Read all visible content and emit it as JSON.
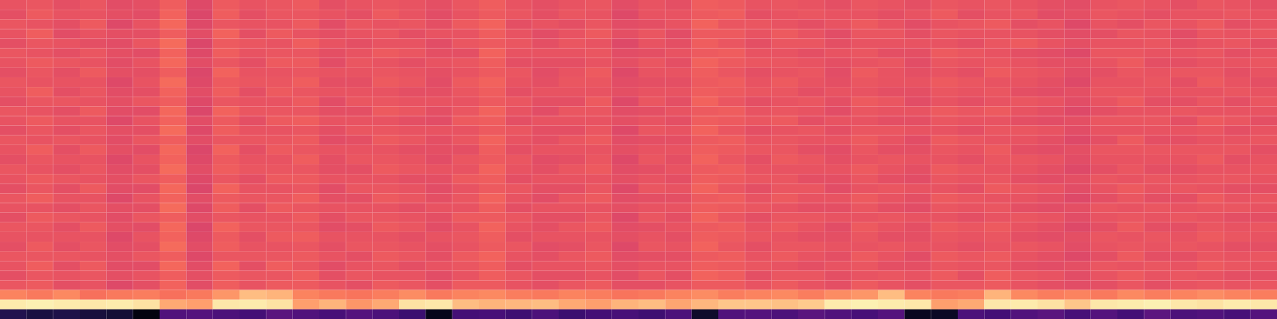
{
  "chart_data": {
    "type": "heatmap",
    "tick_labels": false,
    "color": "magma",
    "zlim": [
      0,
      100
    ],
    "cells": [
      [
        63,
        64,
        62,
        64,
        61,
        62,
        66,
        60,
        65,
        63,
        64,
        65,
        62,
        63,
        64,
        63,
        62,
        64,
        66,
        63,
        62,
        63,
        64,
        61,
        63,
        62,
        66,
        65,
        63,
        64,
        63,
        62,
        64,
        63,
        62,
        64,
        63,
        64,
        63,
        62,
        61,
        63,
        64,
        63,
        62,
        64,
        63,
        62
      ],
      [
        62,
        65,
        63,
        63,
        62,
        61,
        67,
        59,
        66,
        62,
        64,
        64,
        63,
        62,
        65,
        63,
        61,
        63,
        65,
        64,
        62,
        64,
        63,
        60,
        63,
        63,
        65,
        66,
        62,
        63,
        64,
        63,
        63,
        62,
        63,
        65,
        62,
        63,
        64,
        61,
        62,
        64,
        63,
        62,
        63,
        63,
        64,
        63
      ],
      [
        64,
        63,
        62,
        65,
        60,
        63,
        68,
        60,
        64,
        63,
        63,
        65,
        61,
        64,
        63,
        64,
        62,
        65,
        67,
        62,
        63,
        62,
        64,
        61,
        62,
        63,
        67,
        64,
        64,
        63,
        62,
        63,
        65,
        63,
        61,
        63,
        64,
        65,
        62,
        63,
        60,
        63,
        62,
        64,
        63,
        65,
        62,
        63
      ],
      [
        63,
        66,
        61,
        63,
        62,
        62,
        66,
        61,
        67,
        62,
        65,
        63,
        62,
        63,
        64,
        62,
        63,
        63,
        66,
        63,
        61,
        63,
        65,
        62,
        64,
        61,
        65,
        65,
        63,
        65,
        63,
        61,
        64,
        64,
        62,
        64,
        63,
        63,
        63,
        62,
        61,
        62,
        64,
        63,
        61,
        64,
        63,
        64
      ],
      [
        62,
        64,
        63,
        62,
        61,
        64,
        69,
        59,
        65,
        64,
        63,
        66,
        63,
        62,
        63,
        63,
        61,
        64,
        65,
        64,
        62,
        64,
        63,
        60,
        63,
        62,
        66,
        64,
        62,
        64,
        64,
        62,
        63,
        63,
        63,
        63,
        62,
        64,
        65,
        63,
        62,
        63,
        63,
        64,
        62,
        63,
        64,
        62
      ],
      [
        64,
        63,
        62,
        64,
        62,
        61,
        67,
        60,
        66,
        63,
        64,
        64,
        62,
        63,
        65,
        64,
        62,
        62,
        67,
        63,
        63,
        63,
        64,
        61,
        62,
        63,
        65,
        66,
        63,
        63,
        62,
        63,
        64,
        62,
        62,
        65,
        64,
        63,
        62,
        61,
        60,
        64,
        64,
        63,
        63,
        64,
        62,
        63
      ],
      [
        63,
        65,
        64,
        63,
        61,
        63,
        68,
        61,
        64,
        62,
        65,
        65,
        61,
        64,
        63,
        62,
        63,
        64,
        66,
        62,
        62,
        62,
        63,
        62,
        64,
        62,
        67,
        65,
        64,
        64,
        63,
        62,
        63,
        64,
        61,
        64,
        63,
        64,
        63,
        62,
        62,
        63,
        65,
        62,
        62,
        63,
        63,
        64
      ],
      [
        62,
        64,
        62,
        65,
        62,
        62,
        66,
        59,
        67,
        63,
        63,
        64,
        63,
        63,
        64,
        63,
        62,
        63,
        65,
        64,
        61,
        63,
        65,
        60,
        63,
        63,
        66,
        64,
        62,
        63,
        64,
        61,
        65,
        63,
        62,
        63,
        62,
        65,
        64,
        63,
        61,
        62,
        64,
        63,
        64,
        64,
        62,
        63
      ],
      [
        64,
        63,
        63,
        63,
        60,
        63,
        69,
        60,
        65,
        64,
        64,
        66,
        62,
        62,
        65,
        64,
        61,
        65,
        67,
        63,
        62,
        64,
        64,
        61,
        62,
        62,
        65,
        66,
        63,
        65,
        63,
        62,
        64,
        63,
        63,
        65,
        64,
        63,
        63,
        62,
        60,
        63,
        63,
        64,
        62,
        65,
        63,
        62
      ],
      [
        63,
        66,
        62,
        64,
        61,
        62,
        67,
        61,
        66,
        62,
        65,
        64,
        63,
        63,
        63,
        62,
        62,
        64,
        66,
        62,
        63,
        63,
        63,
        62,
        63,
        63,
        66,
        65,
        64,
        64,
        62,
        63,
        63,
        62,
        62,
        64,
        63,
        64,
        62,
        61,
        62,
        64,
        64,
        63,
        63,
        63,
        64,
        63
      ],
      [
        62,
        64,
        64,
        63,
        62,
        64,
        66,
        60,
        64,
        63,
        63,
        65,
        61,
        64,
        64,
        63,
        63,
        63,
        65,
        64,
        62,
        62,
        65,
        60,
        64,
        62,
        67,
        64,
        62,
        63,
        64,
        62,
        65,
        64,
        61,
        63,
        62,
        63,
        64,
        63,
        61,
        63,
        65,
        62,
        62,
        64,
        62,
        64
      ],
      [
        64,
        63,
        62,
        65,
        61,
        61,
        68,
        59,
        67,
        64,
        64,
        64,
        62,
        62,
        65,
        64,
        62,
        64,
        67,
        63,
        61,
        64,
        64,
        61,
        62,
        63,
        65,
        66,
        63,
        64,
        63,
        61,
        64,
        63,
        63,
        65,
        64,
        65,
        63,
        62,
        60,
        62,
        63,
        63,
        64,
        63,
        63,
        63
      ],
      [
        63,
        65,
        63,
        63,
        60,
        63,
        67,
        61,
        65,
        62,
        65,
        66,
        63,
        63,
        63,
        62,
        61,
        65,
        66,
        62,
        63,
        63,
        63,
        62,
        63,
        62,
        66,
        65,
        64,
        65,
        62,
        63,
        63,
        62,
        62,
        64,
        63,
        63,
        62,
        61,
        62,
        64,
        64,
        64,
        62,
        65,
        64,
        62
      ],
      [
        62,
        64,
        62,
        64,
        62,
        62,
        69,
        60,
        66,
        63,
        63,
        64,
        62,
        64,
        64,
        63,
        63,
        63,
        65,
        64,
        62,
        62,
        64,
        60,
        64,
        63,
        67,
        64,
        62,
        63,
        64,
        62,
        64,
        64,
        63,
        63,
        62,
        64,
        64,
        63,
        61,
        63,
        63,
        63,
        63,
        64,
        62,
        63
      ],
      [
        64,
        63,
        64,
        63,
        61,
        64,
        66,
        61,
        64,
        64,
        64,
        65,
        61,
        62,
        65,
        64,
        62,
        64,
        67,
        63,
        62,
        64,
        65,
        61,
        62,
        62,
        65,
        66,
        63,
        64,
        63,
        63,
        65,
        63,
        61,
        65,
        64,
        63,
        63,
        62,
        60,
        62,
        65,
        62,
        62,
        63,
        63,
        64
      ],
      [
        63,
        66,
        62,
        65,
        62,
        61,
        68,
        59,
        67,
        62,
        65,
        64,
        63,
        63,
        63,
        62,
        62,
        62,
        66,
        62,
        63,
        63,
        63,
        62,
        63,
        63,
        66,
        65,
        64,
        64,
        62,
        61,
        64,
        62,
        62,
        64,
        63,
        65,
        62,
        61,
        62,
        64,
        64,
        64,
        64,
        64,
        64,
        62
      ],
      [
        62,
        64,
        63,
        63,
        60,
        63,
        67,
        60,
        65,
        63,
        63,
        66,
        62,
        64,
        64,
        63,
        61,
        64,
        65,
        64,
        61,
        62,
        64,
        60,
        64,
        62,
        67,
        64,
        62,
        65,
        64,
        62,
        63,
        64,
        63,
        63,
        62,
        64,
        64,
        63,
        61,
        63,
        63,
        63,
        63,
        65,
        62,
        63
      ],
      [
        64,
        63,
        62,
        64,
        61,
        62,
        69,
        61,
        66,
        64,
        64,
        64,
        62,
        62,
        65,
        64,
        63,
        63,
        67,
        63,
        62,
        64,
        65,
        61,
        62,
        63,
        65,
        66,
        63,
        63,
        63,
        63,
        65,
        63,
        62,
        65,
        64,
        63,
        63,
        62,
        60,
        62,
        64,
        62,
        62,
        63,
        63,
        64
      ],
      [
        63,
        65,
        64,
        63,
        62,
        64,
        66,
        60,
        64,
        62,
        65,
        65,
        63,
        63,
        63,
        62,
        62,
        65,
        66,
        62,
        63,
        63,
        63,
        62,
        63,
        62,
        66,
        65,
        64,
        64,
        62,
        62,
        64,
        62,
        61,
        64,
        63,
        64,
        62,
        61,
        62,
        64,
        63,
        64,
        63,
        64,
        64,
        63
      ],
      [
        62,
        64,
        62,
        65,
        61,
        61,
        68,
        59,
        67,
        63,
        63,
        64,
        61,
        64,
        64,
        63,
        61,
        63,
        65,
        64,
        62,
        62,
        64,
        60,
        64,
        63,
        67,
        64,
        62,
        64,
        64,
        61,
        63,
        64,
        63,
        63,
        62,
        65,
        64,
        63,
        61,
        63,
        65,
        63,
        64,
        63,
        62,
        62
      ],
      [
        64,
        66,
        63,
        63,
        60,
        63,
        67,
        61,
        65,
        64,
        64,
        66,
        62,
        62,
        65,
        64,
        62,
        64,
        67,
        63,
        61,
        64,
        65,
        61,
        62,
        62,
        65,
        66,
        63,
        65,
        63,
        63,
        65,
        63,
        62,
        65,
        64,
        63,
        63,
        62,
        60,
        62,
        64,
        62,
        62,
        65,
        63,
        64
      ],
      [
        63,
        63,
        62,
        64,
        62,
        62,
        69,
        60,
        66,
        62,
        65,
        64,
        63,
        63,
        63,
        62,
        63,
        63,
        66,
        62,
        63,
        63,
        63,
        62,
        63,
        63,
        66,
        65,
        64,
        63,
        62,
        62,
        64,
        62,
        61,
        64,
        63,
        64,
        62,
        61,
        62,
        64,
        63,
        64,
        63,
        64,
        64,
        63
      ],
      [
        62,
        65,
        64,
        63,
        61,
        64,
        66,
        61,
        64,
        63,
        63,
        65,
        62,
        64,
        64,
        63,
        62,
        65,
        65,
        64,
        62,
        62,
        64,
        60,
        64,
        62,
        67,
        64,
        62,
        64,
        64,
        63,
        63,
        64,
        63,
        63,
        62,
        63,
        64,
        63,
        61,
        63,
        64,
        63,
        64,
        63,
        62,
        62
      ],
      [
        64,
        64,
        62,
        65,
        62,
        61,
        68,
        59,
        67,
        64,
        64,
        64,
        61,
        62,
        65,
        64,
        61,
        63,
        67,
        63,
        62,
        64,
        65,
        61,
        62,
        63,
        65,
        66,
        63,
        65,
        63,
        61,
        65,
        63,
        62,
        65,
        64,
        65,
        63,
        62,
        60,
        62,
        65,
        62,
        62,
        64,
        63,
        64
      ],
      [
        63,
        63,
        63,
        63,
        60,
        63,
        67,
        60,
        65,
        62,
        65,
        66,
        63,
        63,
        63,
        62,
        63,
        64,
        66,
        62,
        63,
        63,
        63,
        62,
        63,
        62,
        66,
        65,
        64,
        63,
        62,
        62,
        64,
        62,
        62,
        64,
        63,
        64,
        62,
        61,
        62,
        64,
        63,
        64,
        63,
        65,
        64,
        63
      ],
      [
        62,
        65,
        62,
        64,
        61,
        62,
        69,
        61,
        66,
        63,
        63,
        64,
        62,
        64,
        64,
        63,
        62,
        63,
        65,
        64,
        61,
        62,
        64,
        60,
        64,
        63,
        67,
        64,
        62,
        64,
        64,
        63,
        63,
        64,
        63,
        63,
        62,
        63,
        64,
        63,
        61,
        63,
        64,
        63,
        64,
        63,
        62,
        62
      ],
      [
        64,
        64,
        64,
        63,
        62,
        64,
        66,
        60,
        64,
        64,
        64,
        65,
        63,
        62,
        65,
        64,
        62,
        65,
        67,
        63,
        62,
        64,
        65,
        61,
        62,
        62,
        65,
        66,
        63,
        65,
        63,
        62,
        65,
        63,
        61,
        65,
        64,
        65,
        63,
        62,
        60,
        62,
        65,
        62,
        62,
        64,
        63,
        64
      ],
      [
        63,
        66,
        62,
        65,
        61,
        61,
        68,
        61,
        67,
        62,
        66,
        64,
        61,
        63,
        64,
        62,
        63,
        64,
        66,
        62,
        63,
        63,
        64,
        62,
        63,
        63,
        66,
        65,
        64,
        63,
        62,
        63,
        64,
        62,
        62,
        64,
        63,
        64,
        62,
        61,
        62,
        64,
        63,
        64,
        63,
        65,
        64,
        63
      ],
      [
        62,
        64,
        63,
        64,
        62,
        63,
        66,
        62,
        65,
        64,
        64,
        66,
        62,
        64,
        63,
        63,
        61,
        63,
        66,
        64,
        62,
        62,
        63,
        61,
        64,
        62,
        67,
        66,
        62,
        64,
        64,
        62,
        63,
        64,
        63,
        65,
        62,
        66,
        64,
        63,
        61,
        63,
        65,
        63,
        64,
        63,
        62,
        62
      ],
      [
        64,
        65,
        62,
        63,
        60,
        62,
        67,
        61,
        66,
        63,
        65,
        65,
        63,
        62,
        65,
        64,
        62,
        65,
        65,
        63,
        62,
        64,
        65,
        62,
        62,
        63,
        65,
        65,
        63,
        65,
        63,
        62,
        65,
        63,
        62,
        64,
        64,
        65,
        63,
        62,
        61,
        62,
        64,
        62,
        63,
        64,
        63,
        64
      ],
      [
        74,
        72,
        75,
        70,
        72,
        73,
        70,
        72,
        78,
        86,
        84,
        74,
        72,
        71,
        73,
        76,
        72,
        74,
        75,
        73,
        72,
        74,
        73,
        71,
        72,
        74,
        76,
        73,
        74,
        75,
        73,
        76,
        78,
        86,
        74,
        72,
        73,
        84,
        75,
        73,
        74,
        72,
        75,
        73,
        74,
        76,
        74,
        73
      ],
      [
        96,
        97,
        96,
        95,
        96,
        94,
        82,
        80,
        95,
        96,
        94,
        80,
        84,
        78,
        82,
        94,
        95,
        86,
        84,
        85,
        86,
        82,
        80,
        84,
        86,
        81,
        85,
        88,
        88,
        87,
        89,
        96,
        97,
        96,
        95,
        80,
        82,
        95,
        96,
        94,
        88,
        95,
        96,
        97,
        95,
        94,
        96,
        95
      ],
      [
        14,
        12,
        13,
        11,
        10,
        3,
        25,
        26,
        24,
        22,
        27,
        25,
        23,
        26,
        24,
        20,
        5,
        22,
        23,
        21,
        24,
        20,
        22,
        23,
        21,
        24,
        8,
        25,
        26,
        24,
        27,
        25,
        23,
        26,
        6,
        7,
        24,
        22,
        25,
        27,
        23,
        26,
        22,
        28,
        24,
        25,
        23,
        26
      ]
    ]
  }
}
